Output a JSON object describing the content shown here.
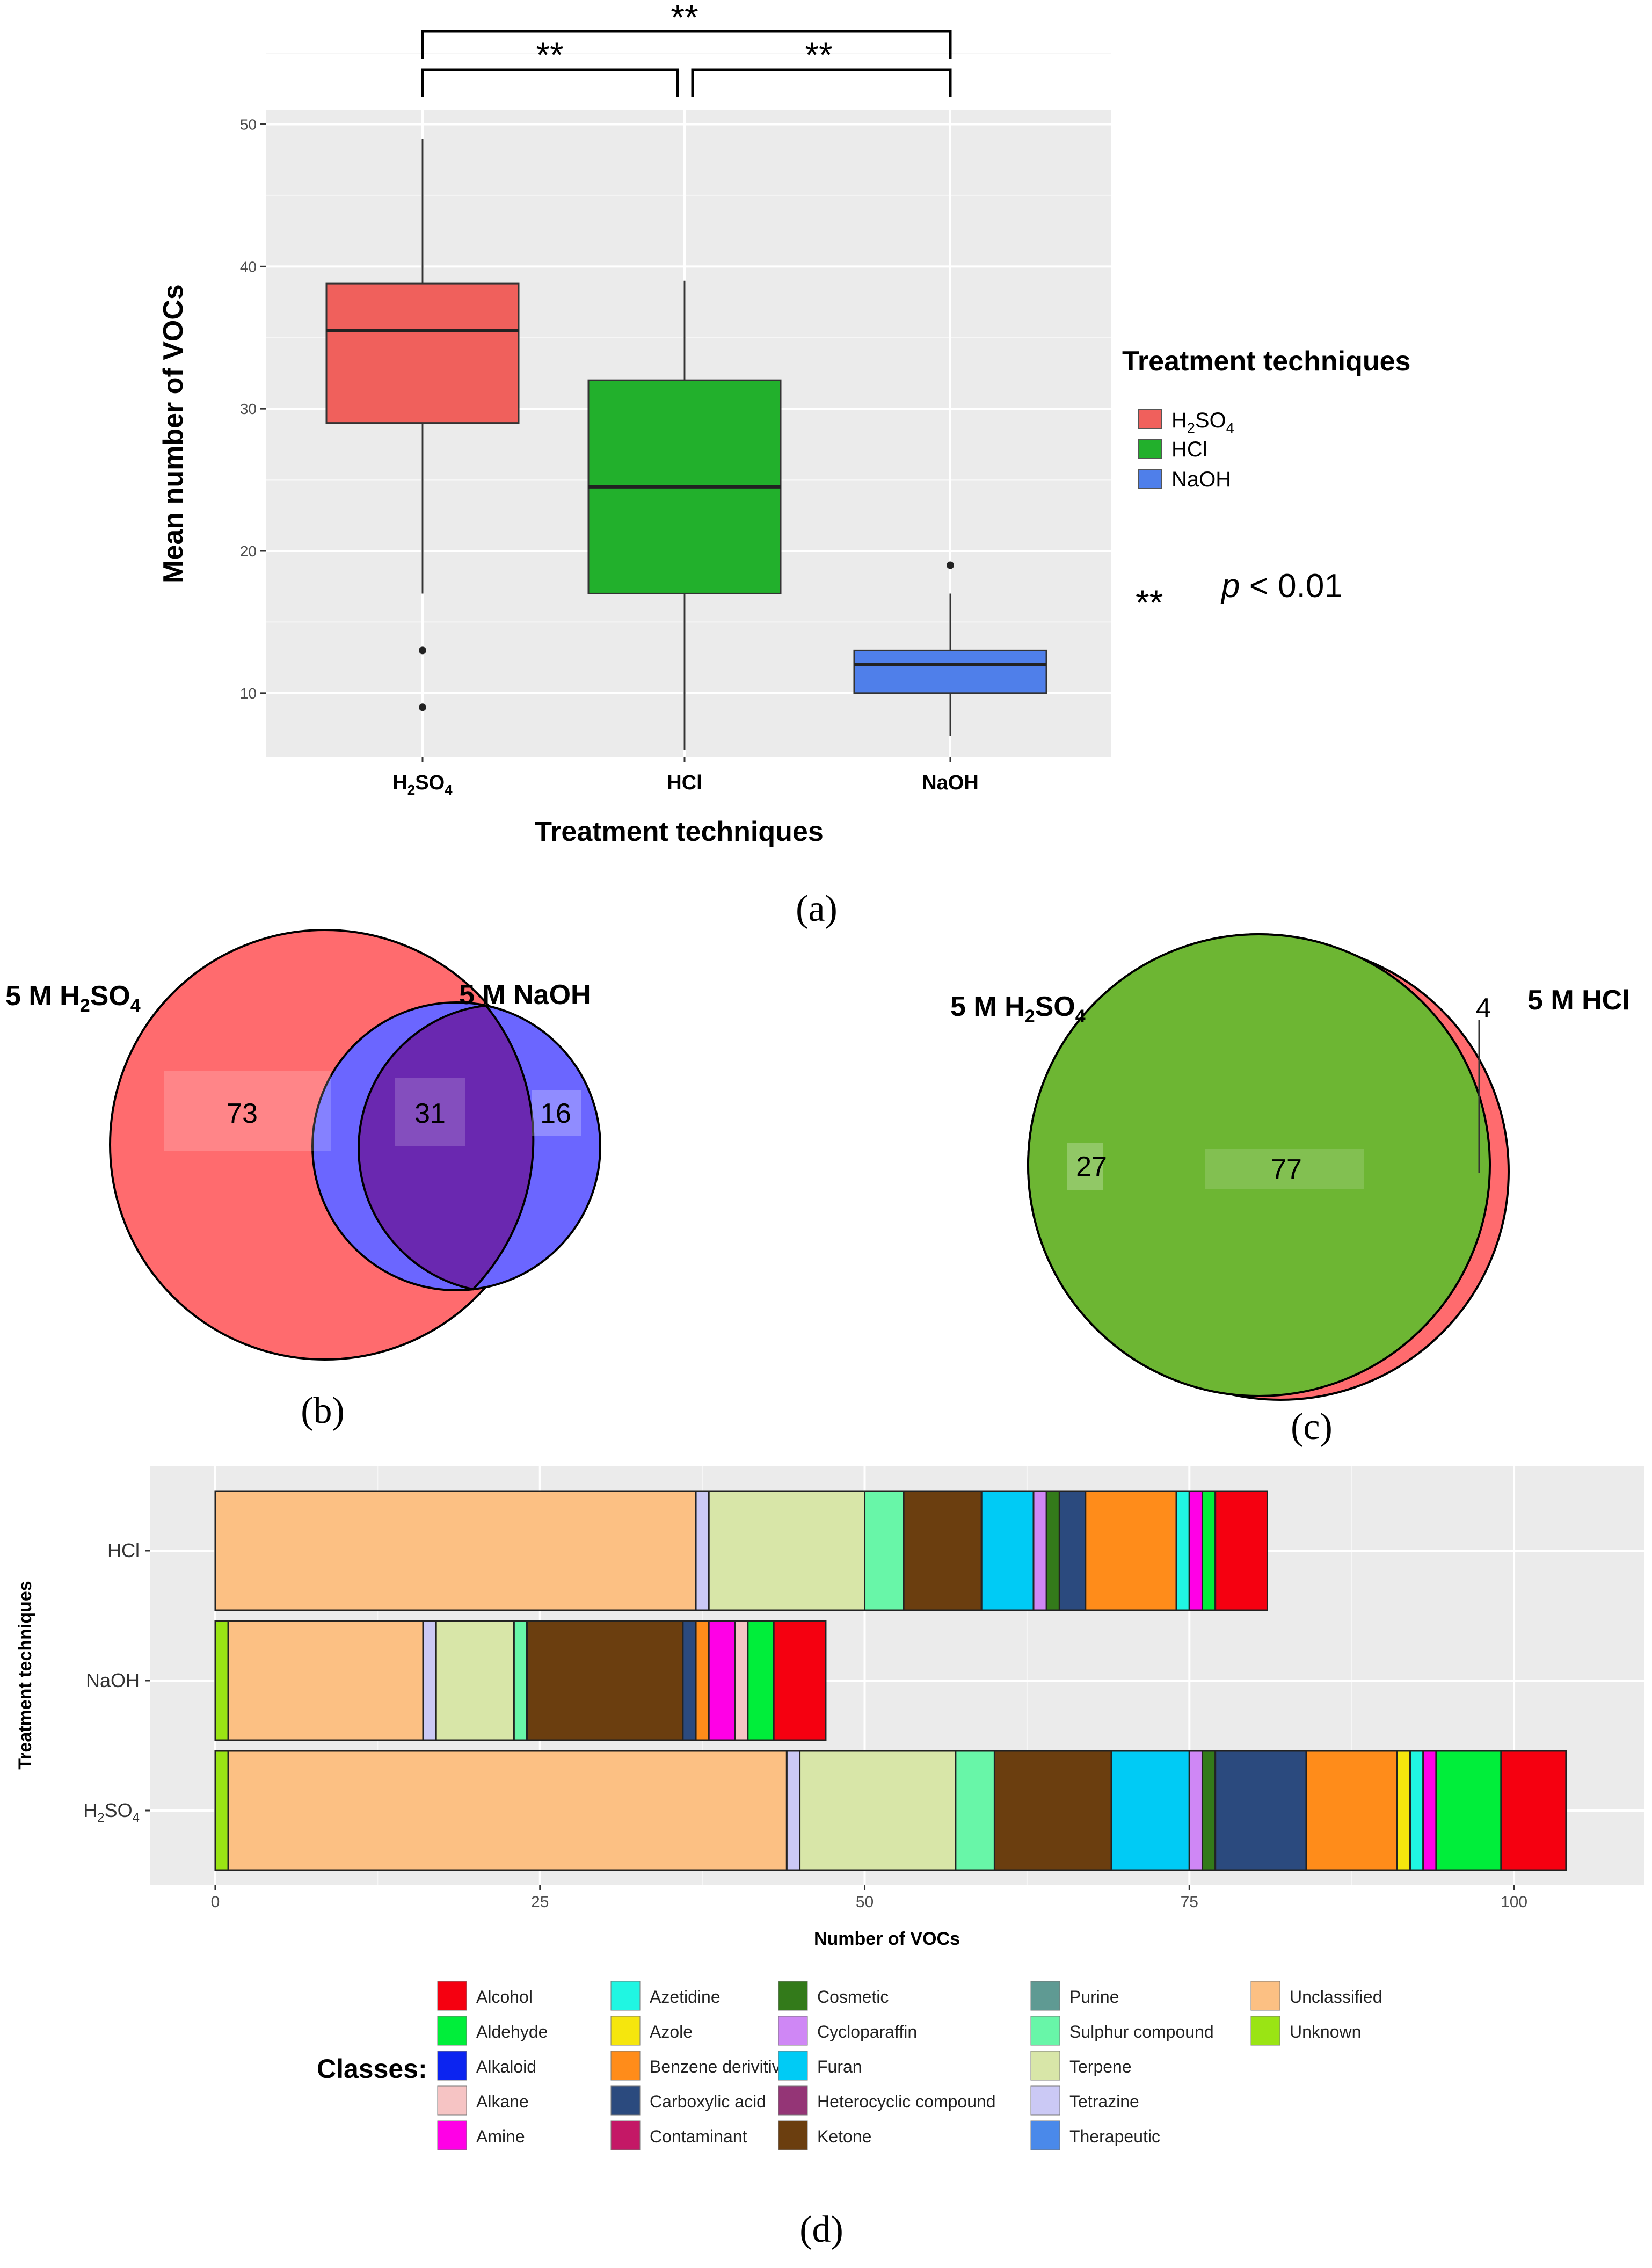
{
  "colors": {
    "panel_bg": "#ebebeb",
    "grid_major": "#ffffff",
    "h2so4": "#f0605c",
    "hcl": "#22b02c",
    "naoh": "#4f7fea",
    "venn_red": "#ff6b6e",
    "venn_blue": "#6b66ff",
    "venn_purple": "#6a28b0",
    "venn_green_light": "#6cf46e",
    "venn_green_dark": "#6db633"
  },
  "chart_data": [
    {
      "panel": "(a)",
      "type": "box",
      "title": "",
      "xlabel": "Treatment techniques",
      "ylabel": "Mean number of VOCs",
      "ylim": [
        5.5,
        51
      ],
      "yticks": [
        "10",
        "20",
        "30",
        "40",
        "50"
      ],
      "categories": [
        "H2SO4",
        "HCl",
        "NaOH"
      ],
      "category_labels": [
        {
          "main": "H",
          "sub1": "2",
          "mid": "SO",
          "sub2": "4"
        },
        {
          "main": "HCl"
        },
        {
          "main": "NaOH"
        }
      ],
      "boxes": [
        {
          "name": "H2SO4",
          "min": 17,
          "q1": 29,
          "median": 35.5,
          "q3": 38.8,
          "max": 49,
          "outliers": [
            13,
            9
          ],
          "color": "#f0605c"
        },
        {
          "name": "HCl",
          "min": 6,
          "q1": 17,
          "median": 24.5,
          "q3": 32,
          "max": 39,
          "outliers": [],
          "color": "#22b02c"
        },
        {
          "name": "NaOH",
          "min": 7,
          "q1": 10,
          "median": 12,
          "q3": 13,
          "max": 17,
          "outliers": [
            19
          ],
          "color": "#4f7fea"
        }
      ],
      "significance": [
        {
          "from": "H2SO4",
          "to": "HCl",
          "label": "**"
        },
        {
          "from": "HCl",
          "to": "NaOH",
          "label": "**"
        },
        {
          "from": "H2SO4",
          "to": "NaOH",
          "label": "**"
        }
      ],
      "legend": {
        "title": "Treatment techniques",
        "entries": [
          {
            "main": "H",
            "sub1": "2",
            "mid": "SO",
            "sub2": "4",
            "color": "#f0605c"
          },
          {
            "main": "HCl",
            "color": "#22b02c"
          },
          {
            "main": "NaOH",
            "color": "#4f7fea"
          }
        ]
      },
      "note_stars": "**",
      "note_p": "p",
      "note_rest": " < 0.01",
      "caption": "(a)"
    },
    {
      "panel": "(b)",
      "type": "venn",
      "set_a": {
        "prefix": "5 M H",
        "sub1": "2",
        "mid": "SO",
        "sub2": "4"
      },
      "set_b": "5 M NaOH",
      "only_a": "73",
      "both": "31",
      "only_b": "16",
      "caption": "(b)"
    },
    {
      "panel": "(c)",
      "type": "venn",
      "set_a": {
        "prefix": "5 M H",
        "sub1": "2",
        "mid": "SO",
        "sub2": "4"
      },
      "set_b": "5 M HCl",
      "only_a": "27",
      "both": "77",
      "only_b": "4",
      "caption": "(c)"
    },
    {
      "panel": "(d)",
      "type": "stacked-bar-horizontal",
      "xlabel": "Number of VOCs",
      "ylabel": "Treatment techniques",
      "xlim": [
        -5,
        110
      ],
      "xticks": [
        "0",
        "25",
        "50",
        "75",
        "100"
      ],
      "rows": [
        {
          "name": "HCl",
          "label": {
            "main": "HCl"
          },
          "segments": [
            {
              "cls": "Unclassified",
              "value": 37
            },
            {
              "cls": "Tetrazine",
              "value": 1
            },
            {
              "cls": "Terpene",
              "value": 12
            },
            {
              "cls": "Sulphur compound",
              "value": 3
            },
            {
              "cls": "Ketone",
              "value": 6
            },
            {
              "cls": "Furan",
              "value": 4
            },
            {
              "cls": "Cycloparaffin",
              "value": 1
            },
            {
              "cls": "Cosmetic",
              "value": 1
            },
            {
              "cls": "Carboxylic acid",
              "value": 2
            },
            {
              "cls": "Benzene derivitive",
              "value": 7
            },
            {
              "cls": "Azetidine",
              "value": 1
            },
            {
              "cls": "Amine",
              "value": 1
            },
            {
              "cls": "Aldehyde",
              "value": 1
            },
            {
              "cls": "Alcohol",
              "value": 4
            }
          ]
        },
        {
          "name": "NaOH",
          "label": {
            "main": "NaOH"
          },
          "segments": [
            {
              "cls": "Unknown",
              "value": 1
            },
            {
              "cls": "Unclassified",
              "value": 15
            },
            {
              "cls": "Tetrazine",
              "value": 1
            },
            {
              "cls": "Terpene",
              "value": 6
            },
            {
              "cls": "Sulphur compound",
              "value": 1
            },
            {
              "cls": "Ketone",
              "value": 12
            },
            {
              "cls": "Carboxylic acid",
              "value": 1
            },
            {
              "cls": "Benzene derivitive",
              "value": 1
            },
            {
              "cls": "Amine",
              "value": 2
            },
            {
              "cls": "Alkane",
              "value": 1
            },
            {
              "cls": "Aldehyde",
              "value": 2
            },
            {
              "cls": "Alcohol",
              "value": 4
            }
          ]
        },
        {
          "name": "H2SO4",
          "label": {
            "main": "H",
            "sub1": "2",
            "mid": "SO",
            "sub2": "4"
          },
          "segments": [
            {
              "cls": "Unknown",
              "value": 1
            },
            {
              "cls": "Unclassified",
              "value": 43
            },
            {
              "cls": "Tetrazine",
              "value": 1
            },
            {
              "cls": "Terpene",
              "value": 12
            },
            {
              "cls": "Sulphur compound",
              "value": 3
            },
            {
              "cls": "Ketone",
              "value": 9
            },
            {
              "cls": "Furan",
              "value": 6
            },
            {
              "cls": "Cycloparaffin",
              "value": 1
            },
            {
              "cls": "Cosmetic",
              "value": 1
            },
            {
              "cls": "Carboxylic acid",
              "value": 7
            },
            {
              "cls": "Benzene derivitive",
              "value": 7
            },
            {
              "cls": "Azole",
              "value": 1
            },
            {
              "cls": "Azetidine",
              "value": 1
            },
            {
              "cls": "Amine",
              "value": 1
            },
            {
              "cls": "Aldehyde",
              "value": 5
            },
            {
              "cls": "Alcohol",
              "value": 5
            }
          ]
        }
      ],
      "legend_title": "Classes:",
      "classes": [
        {
          "name": "Alcohol",
          "color": "#f50010"
        },
        {
          "name": "Aldehyde",
          "color": "#00ee3a"
        },
        {
          "name": "Alkaloid",
          "color": "#0c24f0"
        },
        {
          "name": "Alkane",
          "color": "#f6c4c4"
        },
        {
          "name": "Amine",
          "color": "#ff00e6"
        },
        {
          "name": "Azetidine",
          "color": "#20f6e2"
        },
        {
          "name": "Azole",
          "color": "#f5e60d"
        },
        {
          "name": "Benzene derivitive",
          "color": "#ff8c1a"
        },
        {
          "name": "Carboxylic acid",
          "color": "#2b4a7e"
        },
        {
          "name": "Contaminant",
          "color": "#c41866"
        },
        {
          "name": "Cosmetic",
          "color": "#337a1a"
        },
        {
          "name": "Cycloparaffin",
          "color": "#cf87f5"
        },
        {
          "name": "Furan",
          "color": "#00cbf5"
        },
        {
          "name": "Heterocyclic compound",
          "color": "#943576"
        },
        {
          "name": "Ketone",
          "color": "#6b3e0f"
        },
        {
          "name": "Purine",
          "color": "#5f9a93"
        },
        {
          "name": "Sulphur compound",
          "color": "#68f6a8"
        },
        {
          "name": "Terpene",
          "color": "#d8e6a8"
        },
        {
          "name": "Tetrazine",
          "color": "#cbc9f5"
        },
        {
          "name": "Therapeutic",
          "color": "#4a89ea"
        },
        {
          "name": "Unclassified",
          "color": "#fcc083"
        },
        {
          "name": "Unknown",
          "color": "#9ae414"
        }
      ],
      "caption": "(d)"
    }
  ]
}
